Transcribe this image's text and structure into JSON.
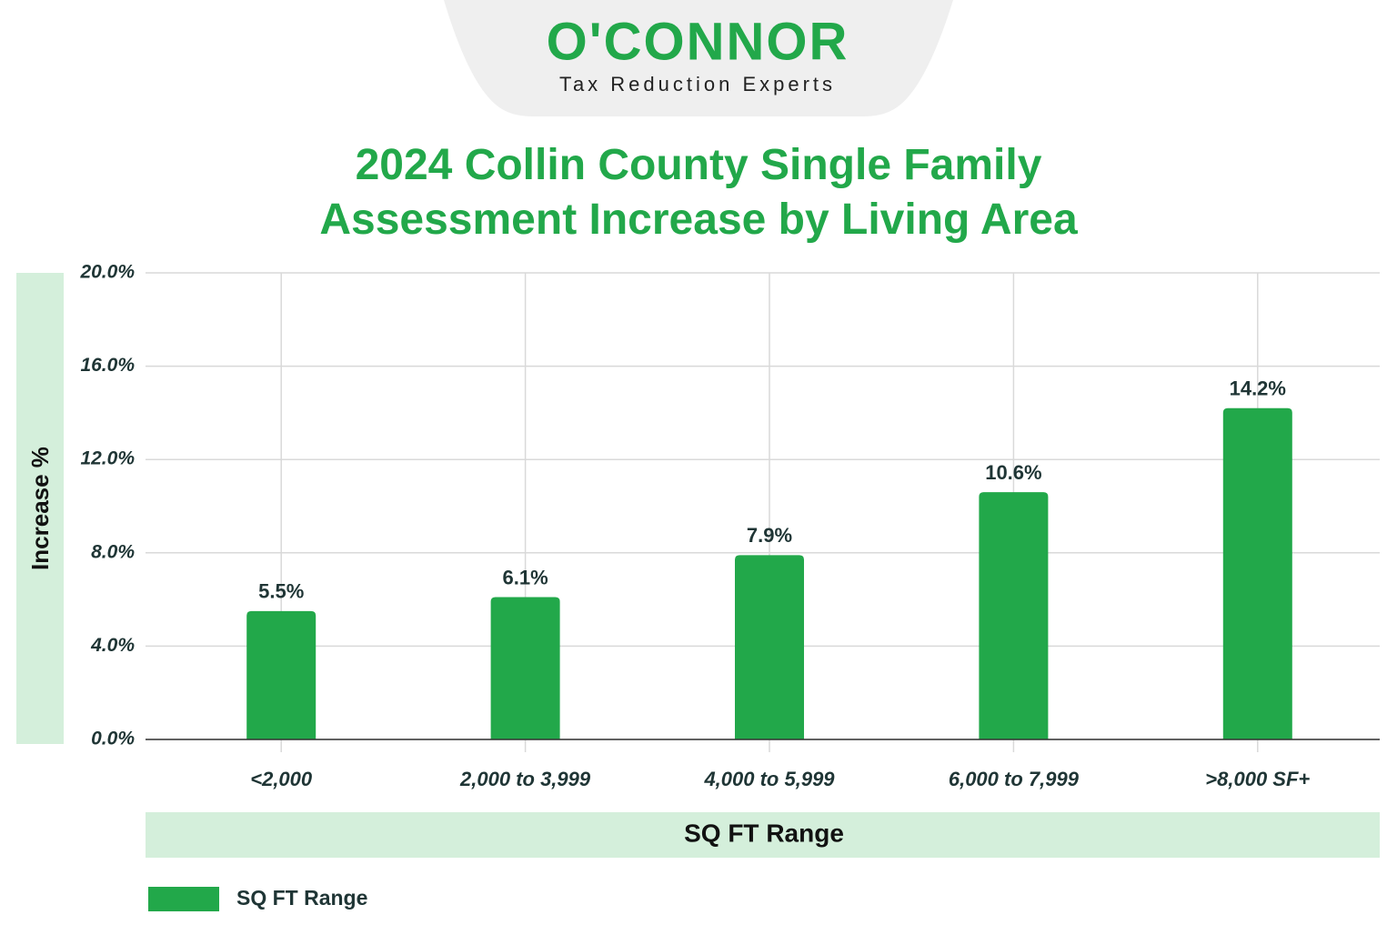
{
  "logo": {
    "name": "O'CONNOR",
    "tagline": "Tax Reduction Experts"
  },
  "chart_data": {
    "type": "bar",
    "title": "2024 Collin County Single Family Assessment Increase by Living Area",
    "y_label": "Increase %",
    "x_label": "SQ FT Range",
    "categories": [
      "<2,000",
      "2,000 to 3,999",
      "4,000 to 5,999",
      "6,000 to 7,999",
      ">8,000 SF+"
    ],
    "series": [
      {
        "name": "SQ FT Range",
        "color": "#22a84a",
        "values": [
          5.5,
          6.1,
          7.9,
          10.6,
          14.2
        ],
        "value_labels": [
          "5.5%",
          "6.1%",
          "7.9%",
          "10.6%",
          "14.2%"
        ]
      }
    ],
    "ylim": [
      0,
      20
    ],
    "yticks": [
      {
        "value": 0,
        "label": "0.0%"
      },
      {
        "value": 4,
        "label": "4.0%"
      },
      {
        "value": 8,
        "label": "8.0%"
      },
      {
        "value": 12,
        "label": "12.0%"
      },
      {
        "value": 16,
        "label": "16.0%"
      },
      {
        "value": 20,
        "label": "20.0%"
      }
    ],
    "grid": true,
    "legend": "bottom-left"
  }
}
